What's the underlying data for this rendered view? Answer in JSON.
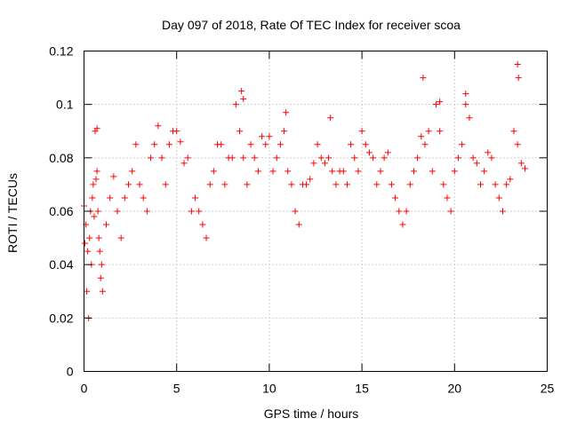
{
  "chart_data": {
    "type": "scatter",
    "title": "Day 097 of 2018, Rate Of TEC Index for receiver scoa",
    "xlabel": "GPS time / hours",
    "ylabel": "ROTI / TECUs",
    "xlim": [
      0,
      25
    ],
    "ylim": [
      0,
      0.12
    ],
    "x_ticks": [
      0,
      5,
      10,
      15,
      20,
      25
    ],
    "x_tick_labels": [
      "0",
      "5",
      "10",
      "15",
      "20",
      "25"
    ],
    "y_ticks": [
      0,
      0.02,
      0.04,
      0.06,
      0.08,
      0.1,
      0.12
    ],
    "y_tick_labels": [
      "0",
      "0.02",
      "0.04",
      "0.06",
      "0.08",
      "0.1",
      "0.12"
    ],
    "grid": true,
    "legend": "none",
    "marker": "plus",
    "color": "#ff0000",
    "series": [
      {
        "x": [
          0.0,
          0.05,
          0.1,
          0.15,
          0.2,
          0.25,
          0.3,
          0.35,
          0.4,
          0.45,
          0.5,
          0.55,
          0.6,
          0.65,
          0.7,
          0.75,
          0.8,
          0.85,
          0.9,
          0.95,
          1.0,
          1.2,
          1.4,
          1.6,
          1.8,
          2.0,
          2.2,
          2.4,
          2.6,
          2.8,
          3.0,
          3.2,
          3.4,
          3.6,
          3.8,
          4.0,
          4.2,
          4.4,
          4.6,
          4.8,
          5.0,
          5.2,
          5.4,
          5.6,
          5.8,
          6.0,
          6.2,
          6.4,
          6.6,
          6.8,
          7.0,
          7.2,
          7.4,
          7.6,
          7.8,
          8.0,
          8.2,
          8.4,
          8.6,
          8.8,
          9.0,
          9.2,
          9.4,
          9.6,
          9.8,
          10.0,
          10.2,
          10.4,
          10.6,
          10.8,
          11.0,
          11.2,
          11.4,
          11.6,
          11.8,
          12.0,
          12.2,
          12.4,
          12.6,
          12.8,
          13.0,
          13.2,
          13.4,
          13.6,
          13.8,
          14.0,
          14.2,
          14.4,
          14.6,
          14.8,
          15.0,
          15.2,
          15.4,
          15.6,
          15.8,
          16.0,
          16.2,
          16.4,
          16.6,
          16.8,
          17.0,
          17.2,
          17.4,
          17.6,
          17.8,
          18.0,
          18.2,
          18.4,
          18.6,
          18.8,
          19.0,
          19.2,
          19.4,
          19.6,
          19.8,
          20.0,
          20.2,
          20.4,
          20.6,
          20.8,
          21.0,
          21.2,
          21.4,
          21.6,
          21.8,
          22.0,
          22.2,
          22.4,
          22.6,
          22.8,
          23.0,
          23.2,
          23.4,
          23.6,
          23.8,
          0.7,
          8.5,
          8.6,
          10.9,
          13.3,
          18.3,
          19.2,
          20.6,
          23.4,
          23.45
        ],
        "y": [
          0.062,
          0.048,
          0.055,
          0.03,
          0.045,
          0.02,
          0.05,
          0.06,
          0.04,
          0.065,
          0.07,
          0.058,
          0.09,
          0.072,
          0.075,
          0.06,
          0.05,
          0.045,
          0.035,
          0.04,
          0.03,
          0.055,
          0.065,
          0.073,
          0.06,
          0.05,
          0.065,
          0.07,
          0.075,
          0.085,
          0.07,
          0.065,
          0.06,
          0.08,
          0.085,
          0.092,
          0.08,
          0.07,
          0.085,
          0.09,
          0.09,
          0.086,
          0.078,
          0.08,
          0.06,
          0.065,
          0.06,
          0.055,
          0.05,
          0.07,
          0.075,
          0.085,
          0.085,
          0.07,
          0.08,
          0.08,
          0.1,
          0.09,
          0.08,
          0.07,
          0.085,
          0.08,
          0.075,
          0.088,
          0.085,
          0.088,
          0.075,
          0.08,
          0.085,
          0.09,
          0.075,
          0.07,
          0.06,
          0.055,
          0.07,
          0.07,
          0.072,
          0.078,
          0.085,
          0.08,
          0.078,
          0.08,
          0.075,
          0.07,
          0.075,
          0.075,
          0.07,
          0.085,
          0.08,
          0.075,
          0.09,
          0.085,
          0.082,
          0.08,
          0.07,
          0.075,
          0.08,
          0.082,
          0.07,
          0.065,
          0.06,
          0.055,
          0.06,
          0.07,
          0.075,
          0.08,
          0.088,
          0.085,
          0.09,
          0.075,
          0.1,
          0.09,
          0.07,
          0.065,
          0.06,
          0.075,
          0.08,
          0.085,
          0.1,
          0.095,
          0.08,
          0.078,
          0.07,
          0.075,
          0.082,
          0.08,
          0.07,
          0.065,
          0.06,
          0.07,
          0.072,
          0.09,
          0.085,
          0.078,
          0.076,
          0.091,
          0.105,
          0.102,
          0.097,
          0.095,
          0.11,
          0.101,
          0.104,
          0.115,
          0.11
        ]
      }
    ]
  }
}
